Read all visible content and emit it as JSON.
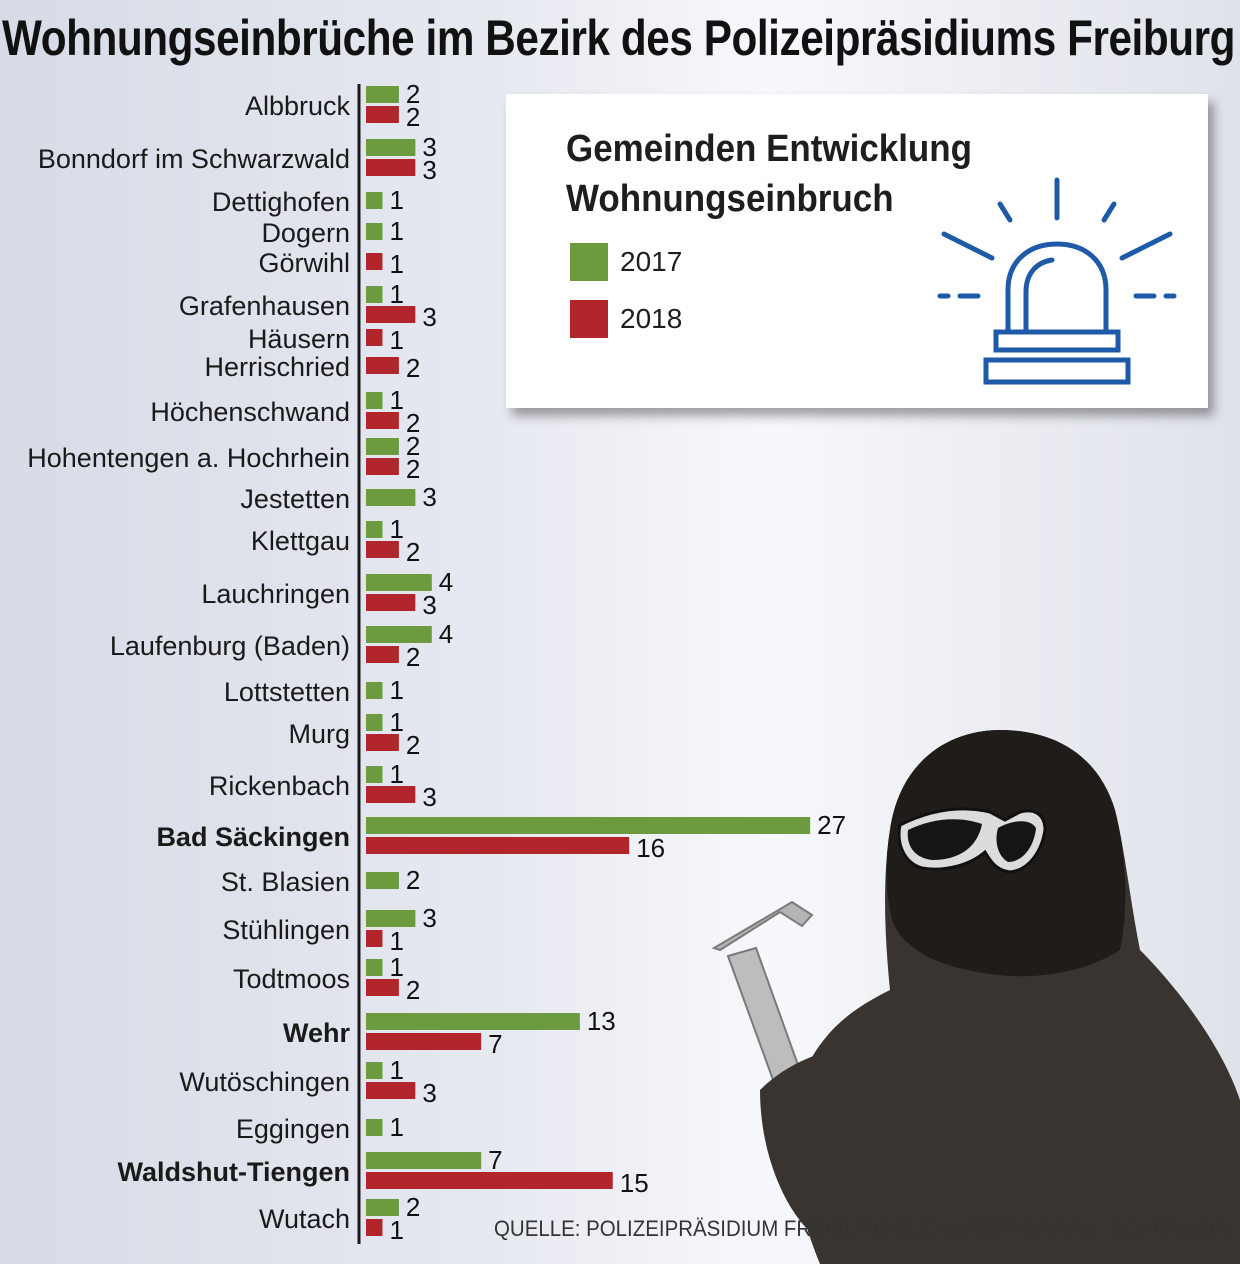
{
  "title": "Wohnungseinbrüche im Bezirk des Polizeipräsidiums Freiburg",
  "legend": {
    "title": "Gemeinden Entwicklung\nWohnungseinbruch",
    "items": [
      {
        "label": "2017",
        "color": "#6b9a3f"
      },
      {
        "label": "2018",
        "color": "#b2252a"
      }
    ]
  },
  "source": "QUELLE: POLIZEIPRÄSIDIUM FREIBURG/SÜDKURIER-GRAFIK: SCHÖNLEIN",
  "icons": {
    "siren": "siren-icon",
    "burglar": "burglar-silhouette"
  },
  "chart_data": {
    "type": "bar",
    "orientation": "horizontal",
    "title": "Wohnungseinbrüche im Bezirk des Polizeipräsidiums Freiburg",
    "legend_position": "top-right",
    "series": [
      {
        "name": "2017",
        "color": "#6b9a3f"
      },
      {
        "name": "2018",
        "color": "#b2252a"
      }
    ],
    "rows": [
      {
        "name": "Albbruck",
        "bold": false,
        "v2017": 2,
        "v2018": 2
      },
      {
        "name": "Bonndorf im Schwarzwald",
        "bold": false,
        "v2017": 3,
        "v2018": 3
      },
      {
        "name": "Dettighofen",
        "bold": false,
        "v2017": 1,
        "v2018": null
      },
      {
        "name": "Dogern",
        "bold": false,
        "v2017": 1,
        "v2018": null
      },
      {
        "name": "Görwihl",
        "bold": false,
        "v2017": null,
        "v2018": 1
      },
      {
        "name": "Grafenhausen",
        "bold": false,
        "v2017": 1,
        "v2018": 3
      },
      {
        "name": "Häusern",
        "bold": false,
        "v2017": null,
        "v2018": 1
      },
      {
        "name": "Herrischried",
        "bold": false,
        "v2017": null,
        "v2018": 2
      },
      {
        "name": "Höchenschwand",
        "bold": false,
        "v2017": 1,
        "v2018": 2
      },
      {
        "name": "Hohentengen a. Hochrhein",
        "bold": false,
        "v2017": 2,
        "v2018": 2
      },
      {
        "name": "Jestetten",
        "bold": false,
        "v2017": 3,
        "v2018": null
      },
      {
        "name": "Klettgau",
        "bold": false,
        "v2017": 1,
        "v2018": 2
      },
      {
        "name": "Lauchringen",
        "bold": false,
        "v2017": 4,
        "v2018": 3
      },
      {
        "name": "Laufenburg (Baden)",
        "bold": false,
        "v2017": 4,
        "v2018": 2
      },
      {
        "name": "Lottstetten",
        "bold": false,
        "v2017": 1,
        "v2018": null
      },
      {
        "name": "Murg",
        "bold": false,
        "v2017": 1,
        "v2018": 2
      },
      {
        "name": "Rickenbach",
        "bold": false,
        "v2017": 1,
        "v2018": 3
      },
      {
        "name": "Bad Säckingen",
        "bold": true,
        "v2017": 27,
        "v2018": 16
      },
      {
        "name": "St. Blasien",
        "bold": false,
        "v2017": 2,
        "v2018": null
      },
      {
        "name": "Stühlingen",
        "bold": false,
        "v2017": 3,
        "v2018": 1
      },
      {
        "name": "Todtmoos",
        "bold": false,
        "v2017": 1,
        "v2018": 2
      },
      {
        "name": "Wehr",
        "bold": true,
        "v2017": 13,
        "v2018": 7
      },
      {
        "name": "Wutöschingen",
        "bold": false,
        "v2017": 1,
        "v2018": 3
      },
      {
        "name": "Eggingen",
        "bold": false,
        "v2017": 1,
        "v2018": null
      },
      {
        "name": "Waldshut-Tiengen",
        "bold": true,
        "v2017": 7,
        "v2018": 15
      },
      {
        "name": "Wutach",
        "bold": false,
        "v2017": 2,
        "v2018": 1
      }
    ]
  }
}
